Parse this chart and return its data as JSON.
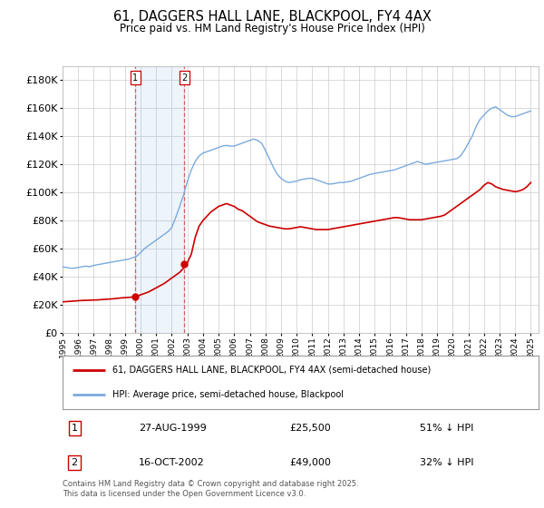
{
  "title": "61, DAGGERS HALL LANE, BLACKPOOL, FY4 4AX",
  "subtitle": "Price paid vs. HM Land Registry's House Price Index (HPI)",
  "title_fontsize": 10.5,
  "subtitle_fontsize": 8.5,
  "background_color": "#ffffff",
  "grid_color": "#cccccc",
  "hpi_color": "#7aaadd",
  "price_color": "#cc0000",
  "legend1": "61, DAGGERS HALL LANE, BLACKPOOL, FY4 4AX (semi-detached house)",
  "legend2": "HPI: Average price, semi-detached house, Blackpool",
  "purchase1_date": 1999.65,
  "purchase1_price": 25500,
  "purchase2_date": 2002.79,
  "purchase2_price": 49000,
  "table_row1": [
    "1",
    "27-AUG-1999",
    "£25,500",
    "51% ↓ HPI"
  ],
  "table_row2": [
    "2",
    "16-OCT-2002",
    "£49,000",
    "32% ↓ HPI"
  ],
  "footer": "Contains HM Land Registry data © Crown copyright and database right 2025.\nThis data is licensed under the Open Government Licence v3.0.",
  "ylim": [
    0,
    190000
  ],
  "yticks": [
    0,
    20000,
    40000,
    60000,
    80000,
    100000,
    120000,
    140000,
    160000,
    180000
  ],
  "hpi_data": [
    [
      1995.0,
      47000
    ],
    [
      1995.25,
      46500
    ],
    [
      1995.5,
      46000
    ],
    [
      1995.75,
      46000
    ],
    [
      1996.0,
      46500
    ],
    [
      1996.25,
      47000
    ],
    [
      1996.5,
      47500
    ],
    [
      1996.75,
      47000
    ],
    [
      1997.0,
      48000
    ],
    [
      1997.25,
      48500
    ],
    [
      1997.5,
      49000
    ],
    [
      1997.75,
      49500
    ],
    [
      1998.0,
      50000
    ],
    [
      1998.25,
      50500
    ],
    [
      1998.5,
      51000
    ],
    [
      1998.75,
      51500
    ],
    [
      1999.0,
      52000
    ],
    [
      1999.25,
      52500
    ],
    [
      1999.5,
      53500
    ],
    [
      1999.75,
      54500
    ],
    [
      2000.0,
      57000
    ],
    [
      2000.25,
      60000
    ],
    [
      2000.5,
      62000
    ],
    [
      2000.75,
      64000
    ],
    [
      2001.0,
      66000
    ],
    [
      2001.25,
      68000
    ],
    [
      2001.5,
      70000
    ],
    [
      2001.75,
      72000
    ],
    [
      2002.0,
      75000
    ],
    [
      2002.25,
      82000
    ],
    [
      2002.5,
      90000
    ],
    [
      2002.75,
      98000
    ],
    [
      2003.0,
      108000
    ],
    [
      2003.25,
      116000
    ],
    [
      2003.5,
      122000
    ],
    [
      2003.75,
      126000
    ],
    [
      2004.0,
      128000
    ],
    [
      2004.25,
      129000
    ],
    [
      2004.5,
      130000
    ],
    [
      2004.75,
      131000
    ],
    [
      2005.0,
      132000
    ],
    [
      2005.25,
      133000
    ],
    [
      2005.5,
      133500
    ],
    [
      2005.75,
      133000
    ],
    [
      2006.0,
      133000
    ],
    [
      2006.25,
      134000
    ],
    [
      2006.5,
      135000
    ],
    [
      2006.75,
      136000
    ],
    [
      2007.0,
      137000
    ],
    [
      2007.25,
      138000
    ],
    [
      2007.5,
      137000
    ],
    [
      2007.75,
      135000
    ],
    [
      2008.0,
      130000
    ],
    [
      2008.25,
      124000
    ],
    [
      2008.5,
      118000
    ],
    [
      2008.75,
      113000
    ],
    [
      2009.0,
      110000
    ],
    [
      2009.25,
      108000
    ],
    [
      2009.5,
      107000
    ],
    [
      2009.75,
      107500
    ],
    [
      2010.0,
      108000
    ],
    [
      2010.25,
      109000
    ],
    [
      2010.5,
      109500
    ],
    [
      2010.75,
      110000
    ],
    [
      2011.0,
      110000
    ],
    [
      2011.25,
      109000
    ],
    [
      2011.5,
      108000
    ],
    [
      2011.75,
      107000
    ],
    [
      2012.0,
      106000
    ],
    [
      2012.25,
      106000
    ],
    [
      2012.5,
      106500
    ],
    [
      2012.75,
      107000
    ],
    [
      2013.0,
      107000
    ],
    [
      2013.25,
      107500
    ],
    [
      2013.5,
      108000
    ],
    [
      2013.75,
      109000
    ],
    [
      2014.0,
      110000
    ],
    [
      2014.25,
      111000
    ],
    [
      2014.5,
      112000
    ],
    [
      2014.75,
      113000
    ],
    [
      2015.0,
      113500
    ],
    [
      2015.25,
      114000
    ],
    [
      2015.5,
      114500
    ],
    [
      2015.75,
      115000
    ],
    [
      2016.0,
      115500
    ],
    [
      2016.25,
      116000
    ],
    [
      2016.5,
      117000
    ],
    [
      2016.75,
      118000
    ],
    [
      2017.0,
      119000
    ],
    [
      2017.25,
      120000
    ],
    [
      2017.5,
      121000
    ],
    [
      2017.75,
      122000
    ],
    [
      2018.0,
      121000
    ],
    [
      2018.25,
      120000
    ],
    [
      2018.5,
      120500
    ],
    [
      2018.75,
      121000
    ],
    [
      2019.0,
      121500
    ],
    [
      2019.25,
      122000
    ],
    [
      2019.5,
      122500
    ],
    [
      2019.75,
      123000
    ],
    [
      2020.0,
      123500
    ],
    [
      2020.25,
      124000
    ],
    [
      2020.5,
      126000
    ],
    [
      2020.75,
      130000
    ],
    [
      2021.0,
      135000
    ],
    [
      2021.25,
      140000
    ],
    [
      2021.5,
      147000
    ],
    [
      2021.75,
      152000
    ],
    [
      2022.0,
      155000
    ],
    [
      2022.25,
      158000
    ],
    [
      2022.5,
      160000
    ],
    [
      2022.75,
      161000
    ],
    [
      2023.0,
      159000
    ],
    [
      2023.25,
      157000
    ],
    [
      2023.5,
      155000
    ],
    [
      2023.75,
      154000
    ],
    [
      2024.0,
      154000
    ],
    [
      2024.25,
      155000
    ],
    [
      2024.5,
      156000
    ],
    [
      2024.75,
      157000
    ],
    [
      2025.0,
      158000
    ]
  ],
  "price_data": [
    [
      1995.0,
      22000
    ],
    [
      1995.25,
      22200
    ],
    [
      1995.5,
      22400
    ],
    [
      1995.75,
      22600
    ],
    [
      1996.0,
      22800
    ],
    [
      1996.25,
      23000
    ],
    [
      1996.5,
      23100
    ],
    [
      1996.75,
      23200
    ],
    [
      1997.0,
      23300
    ],
    [
      1997.25,
      23400
    ],
    [
      1997.5,
      23600
    ],
    [
      1997.75,
      23800
    ],
    [
      1998.0,
      24000
    ],
    [
      1998.25,
      24200
    ],
    [
      1998.5,
      24500
    ],
    [
      1998.75,
      24800
    ],
    [
      1999.0,
      25000
    ],
    [
      1999.25,
      25200
    ],
    [
      1999.5,
      25400
    ],
    [
      1999.65,
      25500
    ],
    [
      1999.75,
      26000
    ],
    [
      2000.0,
      27000
    ],
    [
      2000.25,
      28000
    ],
    [
      2000.5,
      29000
    ],
    [
      2000.75,
      30500
    ],
    [
      2001.0,
      32000
    ],
    [
      2001.25,
      33500
    ],
    [
      2001.5,
      35000
    ],
    [
      2001.75,
      37000
    ],
    [
      2002.0,
      39000
    ],
    [
      2002.25,
      41000
    ],
    [
      2002.5,
      43000
    ],
    [
      2002.75,
      46000
    ],
    [
      2002.79,
      49000
    ],
    [
      2003.0,
      50000
    ],
    [
      2003.25,
      56000
    ],
    [
      2003.5,
      68000
    ],
    [
      2003.75,
      76000
    ],
    [
      2004.0,
      80000
    ],
    [
      2004.25,
      83000
    ],
    [
      2004.5,
      86000
    ],
    [
      2004.75,
      88000
    ],
    [
      2005.0,
      90000
    ],
    [
      2005.25,
      91000
    ],
    [
      2005.5,
      92000
    ],
    [
      2005.75,
      91000
    ],
    [
      2006.0,
      90000
    ],
    [
      2006.25,
      88000
    ],
    [
      2006.5,
      87000
    ],
    [
      2006.75,
      85000
    ],
    [
      2007.0,
      83000
    ],
    [
      2007.25,
      81000
    ],
    [
      2007.5,
      79000
    ],
    [
      2007.75,
      78000
    ],
    [
      2008.0,
      77000
    ],
    [
      2008.25,
      76000
    ],
    [
      2008.5,
      75500
    ],
    [
      2008.75,
      75000
    ],
    [
      2009.0,
      74500
    ],
    [
      2009.25,
      74000
    ],
    [
      2009.5,
      74000
    ],
    [
      2009.75,
      74500
    ],
    [
      2010.0,
      75000
    ],
    [
      2010.25,
      75500
    ],
    [
      2010.5,
      75000
    ],
    [
      2010.75,
      74500
    ],
    [
      2011.0,
      74000
    ],
    [
      2011.25,
      73500
    ],
    [
      2011.5,
      73500
    ],
    [
      2011.75,
      73500
    ],
    [
      2012.0,
      73500
    ],
    [
      2012.25,
      74000
    ],
    [
      2012.5,
      74500
    ],
    [
      2012.75,
      75000
    ],
    [
      2013.0,
      75500
    ],
    [
      2013.25,
      76000
    ],
    [
      2013.5,
      76500
    ],
    [
      2013.75,
      77000
    ],
    [
      2014.0,
      77500
    ],
    [
      2014.25,
      78000
    ],
    [
      2014.5,
      78500
    ],
    [
      2014.75,
      79000
    ],
    [
      2015.0,
      79500
    ],
    [
      2015.25,
      80000
    ],
    [
      2015.5,
      80500
    ],
    [
      2015.75,
      81000
    ],
    [
      2016.0,
      81500
    ],
    [
      2016.25,
      82000
    ],
    [
      2016.5,
      82000
    ],
    [
      2016.75,
      81500
    ],
    [
      2017.0,
      81000
    ],
    [
      2017.25,
      80500
    ],
    [
      2017.5,
      80500
    ],
    [
      2017.75,
      80500
    ],
    [
      2018.0,
      80500
    ],
    [
      2018.25,
      81000
    ],
    [
      2018.5,
      81500
    ],
    [
      2018.75,
      82000
    ],
    [
      2019.0,
      82500
    ],
    [
      2019.25,
      83000
    ],
    [
      2019.5,
      84000
    ],
    [
      2019.75,
      86000
    ],
    [
      2020.0,
      88000
    ],
    [
      2020.25,
      90000
    ],
    [
      2020.5,
      92000
    ],
    [
      2020.75,
      94000
    ],
    [
      2021.0,
      96000
    ],
    [
      2021.25,
      98000
    ],
    [
      2021.5,
      100000
    ],
    [
      2021.75,
      102000
    ],
    [
      2022.0,
      105000
    ],
    [
      2022.25,
      107000
    ],
    [
      2022.5,
      106000
    ],
    [
      2022.75,
      104000
    ],
    [
      2023.0,
      103000
    ],
    [
      2023.25,
      102000
    ],
    [
      2023.5,
      101500
    ],
    [
      2023.75,
      101000
    ],
    [
      2024.0,
      100500
    ],
    [
      2024.25,
      101000
    ],
    [
      2024.5,
      102000
    ],
    [
      2024.75,
      104000
    ],
    [
      2025.0,
      107000
    ]
  ]
}
